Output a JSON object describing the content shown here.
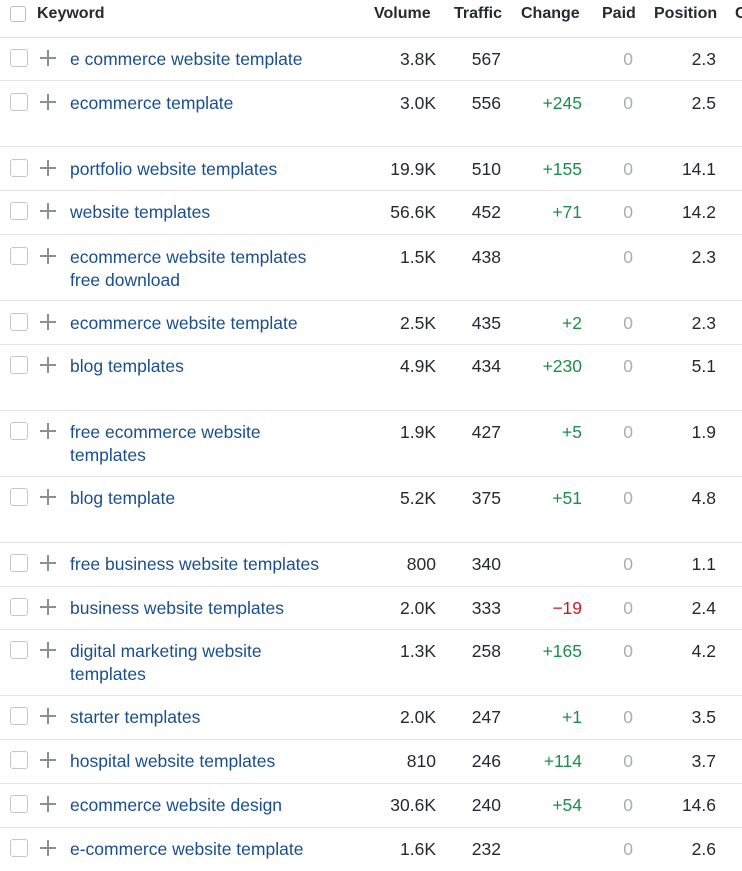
{
  "header": {
    "keyword": "Keyword",
    "volume": "Volume",
    "traffic": "Traffic",
    "change": "Change",
    "paid": "Paid",
    "position": "Position",
    "cutoff": "C"
  },
  "rows": [
    {
      "keyword": "e commerce website template",
      "volume": "3.8K",
      "traffic": "567",
      "change": "",
      "paid": "0",
      "position": "2.3"
    },
    {
      "keyword": "ecommerce template",
      "volume": "3.0K",
      "traffic": "556",
      "change": "+245",
      "paid": "0",
      "position": "2.5"
    },
    {
      "keyword": "portfolio website templates",
      "volume": "19.9K",
      "traffic": "510",
      "change": "+155",
      "paid": "0",
      "position": "14.1"
    },
    {
      "keyword": "website templates",
      "volume": "56.6K",
      "traffic": "452",
      "change": "+71",
      "paid": "0",
      "position": "14.2"
    },
    {
      "keyword": "ecommerce website templates free download",
      "volume": "1.5K",
      "traffic": "438",
      "change": "",
      "paid": "0",
      "position": "2.3"
    },
    {
      "keyword": "ecommerce website template",
      "volume": "2.5K",
      "traffic": "435",
      "change": "+2",
      "paid": "0",
      "position": "2.3"
    },
    {
      "keyword": "blog templates",
      "volume": "4.9K",
      "traffic": "434",
      "change": "+230",
      "paid": "0",
      "position": "5.1"
    },
    {
      "keyword": "free ecommerce website templates",
      "volume": "1.9K",
      "traffic": "427",
      "change": "+5",
      "paid": "0",
      "position": "1.9"
    },
    {
      "keyword": "blog template",
      "volume": "5.2K",
      "traffic": "375",
      "change": "+51",
      "paid": "0",
      "position": "4.8"
    },
    {
      "keyword": "free business website templates",
      "volume": "800",
      "traffic": "340",
      "change": "",
      "paid": "0",
      "position": "1.1"
    },
    {
      "keyword": "business website templates",
      "volume": "2.0K",
      "traffic": "333",
      "change": "−19",
      "paid": "0",
      "position": "2.4"
    },
    {
      "keyword": "digital marketing website templates",
      "volume": "1.3K",
      "traffic": "258",
      "change": "+165",
      "paid": "0",
      "position": "4.2"
    },
    {
      "keyword": "starter templates",
      "volume": "2.0K",
      "traffic": "247",
      "change": "+1",
      "paid": "0",
      "position": "3.5"
    },
    {
      "keyword": "hospital website templates",
      "volume": "810",
      "traffic": "246",
      "change": "+114",
      "paid": "0",
      "position": "3.7"
    },
    {
      "keyword": "ecommerce website design",
      "volume": "30.6K",
      "traffic": "240",
      "change": "+54",
      "paid": "0",
      "position": "14.6"
    },
    {
      "keyword": "e-commerce website template",
      "volume": "1.6K",
      "traffic": "232",
      "change": "",
      "paid": "0",
      "position": "2.6"
    }
  ],
  "colors": {
    "keyword_link": "#1a4f8b",
    "change_positive": "#1e8e4a",
    "change_negative": "#c41b24",
    "paid_muted": "#a9adb4"
  }
}
